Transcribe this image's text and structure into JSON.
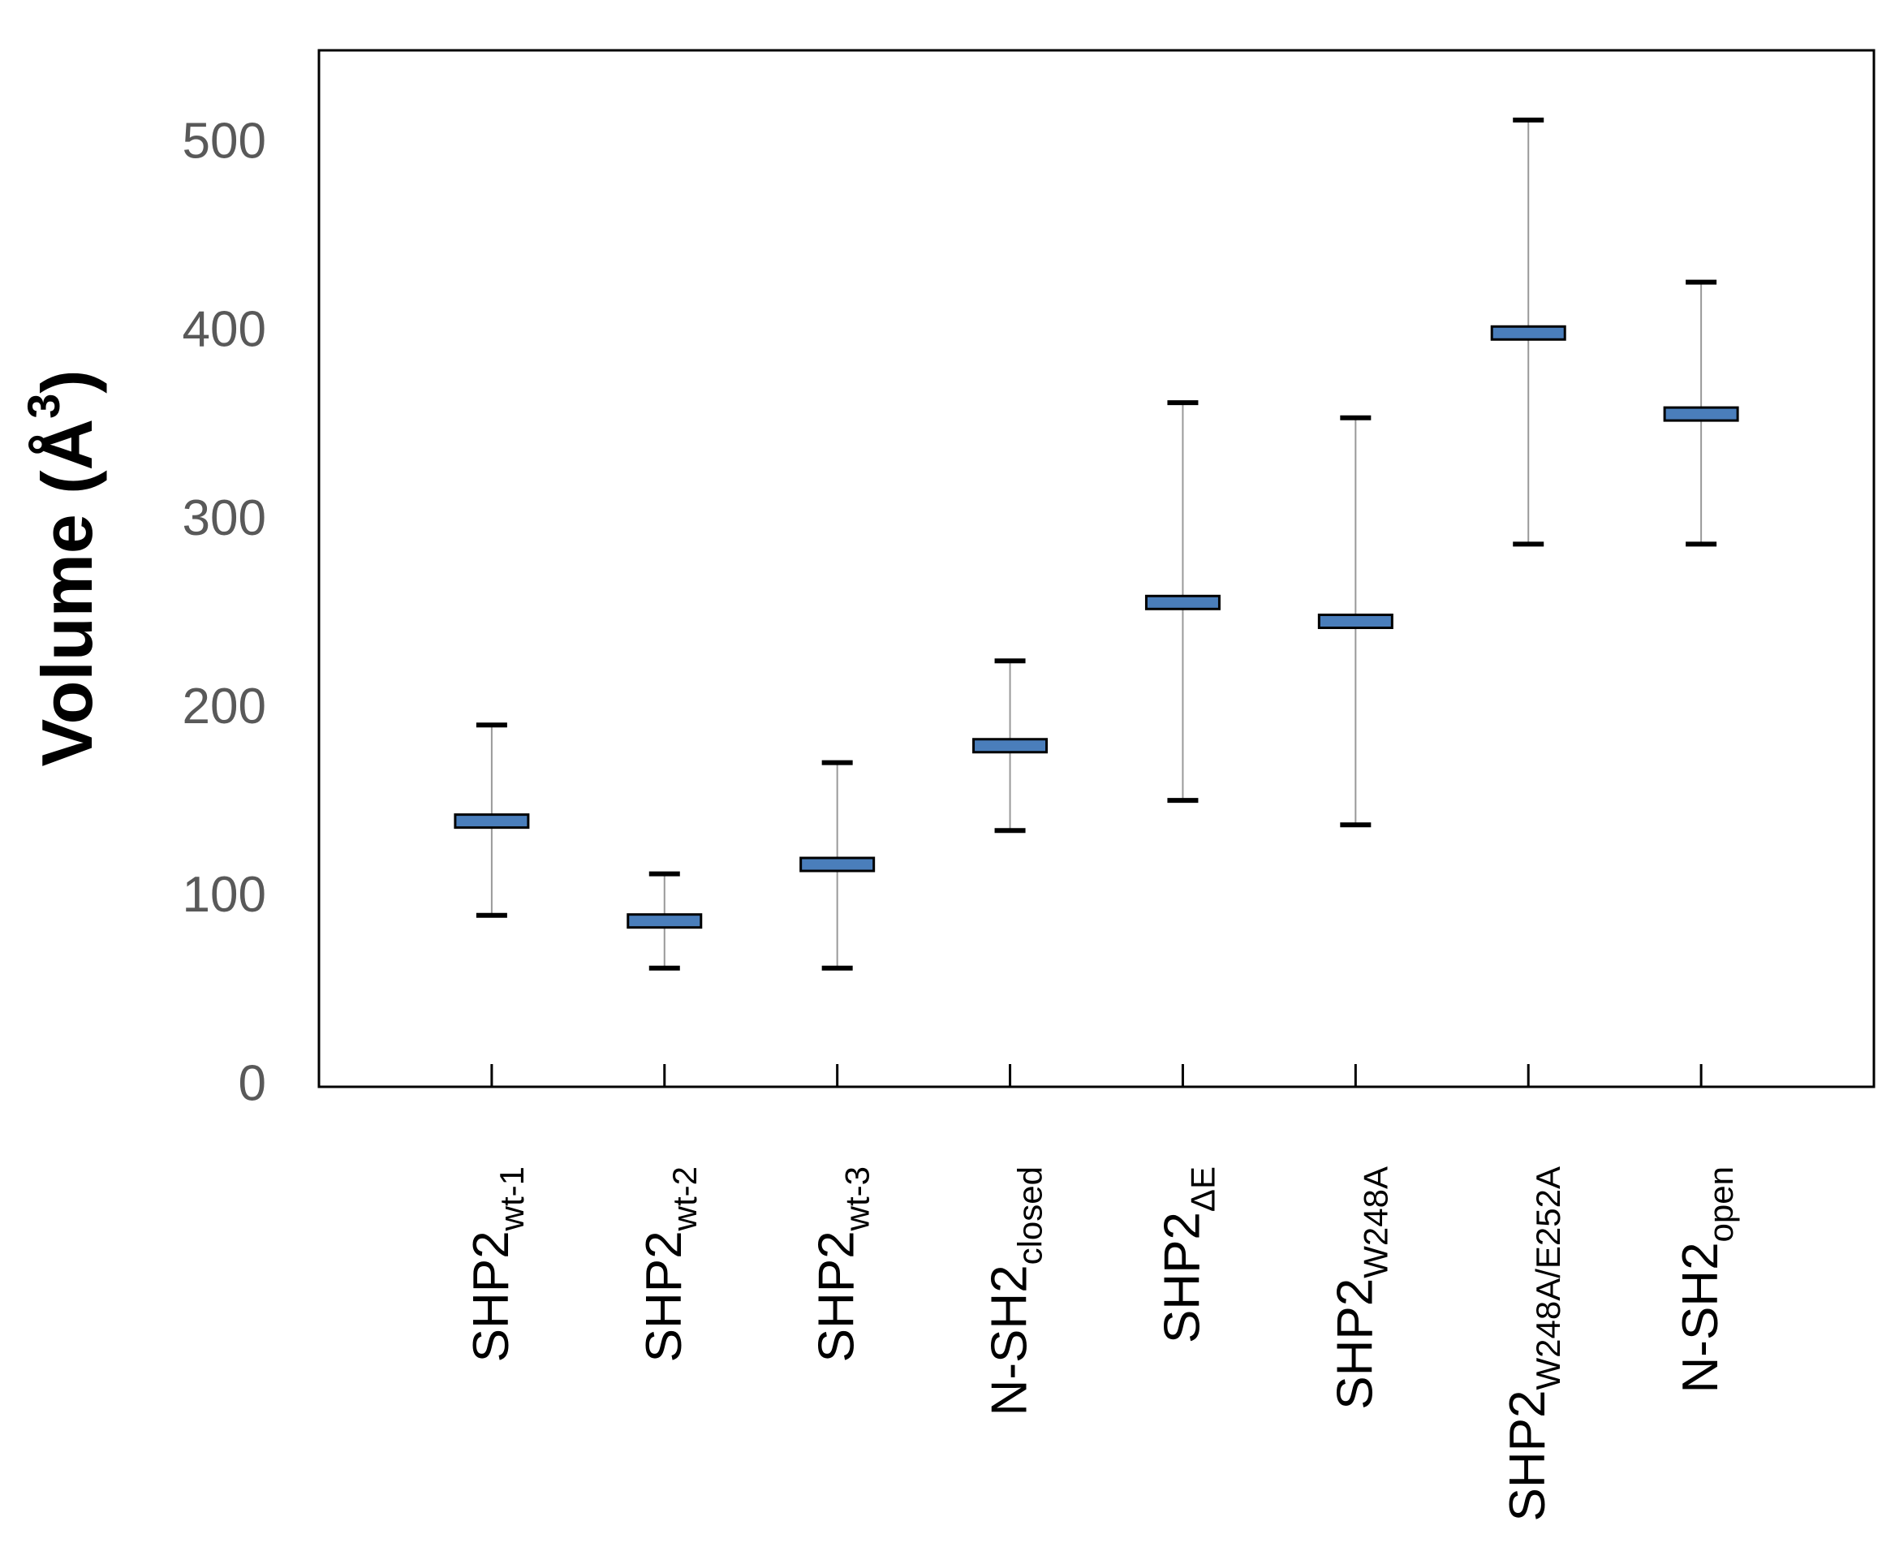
{
  "chart_data": {
    "type": "range",
    "y_label": {
      "main": "Volume (Å",
      "superscript": "3",
      "close": ")"
    },
    "categories": [
      {
        "base": "SHP2",
        "sub": "wt-1"
      },
      {
        "base": "SHP2",
        "sub": "wt-2"
      },
      {
        "base": "SHP2",
        "sub": "wt-3"
      },
      {
        "base": "N-SH2",
        "sub": "closed"
      },
      {
        "base": "SHP2",
        "sub": "ΔE"
      },
      {
        "base": "SHP2",
        "sub": "W248A"
      },
      {
        "base": "SHP2",
        "sub": "W248A/E252A"
      },
      {
        "base": "N-SH2",
        "sub": "open"
      }
    ],
    "values": [
      141,
      88,
      118,
      181,
      257,
      247,
      400,
      357
    ],
    "upper": [
      192,
      113,
      172,
      226,
      363,
      355,
      513,
      427
    ],
    "lower": [
      91,
      63,
      63,
      136,
      152,
      139,
      288,
      288
    ],
    "color": "#4a7ebb",
    "ylim": [
      0,
      550
    ],
    "yticks": [
      0,
      100,
      200,
      300,
      400,
      500
    ]
  }
}
